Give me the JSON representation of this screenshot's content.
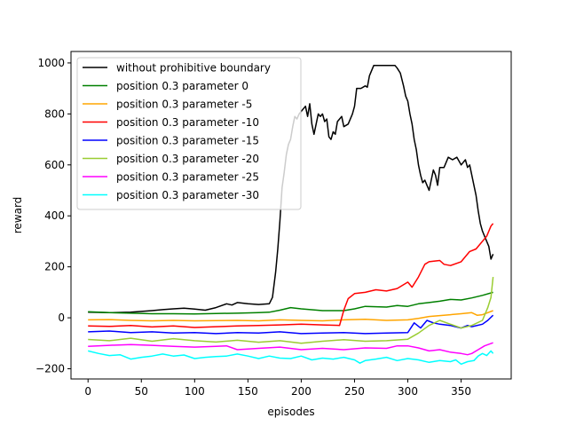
{
  "chart_data": {
    "type": "line",
    "title": "",
    "xlabel": "episodes",
    "ylabel": "reward",
    "xlim": [
      -16,
      397
    ],
    "ylim": [
      -240,
      1045
    ],
    "xticks": [
      0,
      50,
      100,
      150,
      200,
      250,
      300,
      350
    ],
    "yticks": [
      -200,
      0,
      200,
      400,
      600,
      800,
      1000
    ],
    "legend_position": "top-left",
    "grid": false,
    "series": [
      {
        "name": "without prohibitive boundary",
        "color": "#000000",
        "points": [
          [
            0,
            22
          ],
          [
            20,
            20
          ],
          [
            40,
            22
          ],
          [
            60,
            28
          ],
          [
            70,
            32
          ],
          [
            80,
            35
          ],
          [
            90,
            38
          ],
          [
            100,
            34
          ],
          [
            110,
            30
          ],
          [
            120,
            40
          ],
          [
            130,
            55
          ],
          [
            135,
            50
          ],
          [
            140,
            60
          ],
          [
            150,
            55
          ],
          [
            160,
            52
          ],
          [
            170,
            55
          ],
          [
            173,
            80
          ],
          [
            176,
            180
          ],
          [
            178,
            270
          ],
          [
            180,
            380
          ],
          [
            182,
            510
          ],
          [
            184,
            570
          ],
          [
            186,
            640
          ],
          [
            188,
            680
          ],
          [
            190,
            700
          ],
          [
            192,
            750
          ],
          [
            194,
            790
          ],
          [
            196,
            780
          ],
          [
            198,
            800
          ],
          [
            200,
            810
          ],
          [
            204,
            830
          ],
          [
            206,
            790
          ],
          [
            208,
            840
          ],
          [
            210,
            760
          ],
          [
            212,
            720
          ],
          [
            214,
            760
          ],
          [
            216,
            800
          ],
          [
            218,
            790
          ],
          [
            220,
            800
          ],
          [
            222,
            770
          ],
          [
            224,
            780
          ],
          [
            226,
            710
          ],
          [
            228,
            700
          ],
          [
            230,
            730
          ],
          [
            232,
            720
          ],
          [
            234,
            770
          ],
          [
            236,
            780
          ],
          [
            238,
            790
          ],
          [
            240,
            750
          ],
          [
            244,
            760
          ],
          [
            248,
            800
          ],
          [
            250,
            830
          ],
          [
            252,
            900
          ],
          [
            256,
            900
          ],
          [
            260,
            910
          ],
          [
            262,
            905
          ],
          [
            264,
            950
          ],
          [
            268,
            990
          ],
          [
            272,
            990
          ],
          [
            276,
            990
          ],
          [
            280,
            990
          ],
          [
            284,
            990
          ],
          [
            288,
            990
          ],
          [
            290,
            980
          ],
          [
            293,
            960
          ],
          [
            296,
            910
          ],
          [
            298,
            870
          ],
          [
            300,
            850
          ],
          [
            302,
            800
          ],
          [
            304,
            760
          ],
          [
            306,
            700
          ],
          [
            308,
            660
          ],
          [
            310,
            600
          ],
          [
            312,
            560
          ],
          [
            314,
            530
          ],
          [
            316,
            540
          ],
          [
            318,
            520
          ],
          [
            320,
            500
          ],
          [
            322,
            540
          ],
          [
            324,
            580
          ],
          [
            326,
            560
          ],
          [
            328,
            520
          ],
          [
            330,
            590
          ],
          [
            334,
            590
          ],
          [
            338,
            630
          ],
          [
            342,
            620
          ],
          [
            346,
            630
          ],
          [
            350,
            600
          ],
          [
            354,
            620
          ],
          [
            356,
            590
          ],
          [
            358,
            600
          ],
          [
            360,
            560
          ],
          [
            362,
            520
          ],
          [
            364,
            480
          ],
          [
            366,
            420
          ],
          [
            368,
            370
          ],
          [
            370,
            340
          ],
          [
            372,
            320
          ],
          [
            374,
            300
          ],
          [
            376,
            280
          ],
          [
            378,
            230
          ],
          [
            380,
            250
          ]
        ]
      },
      {
        "name": "position 0.3 parameter 0",
        "color": "#008000",
        "points": [
          [
            0,
            24
          ],
          [
            20,
            20
          ],
          [
            40,
            18
          ],
          [
            60,
            16
          ],
          [
            80,
            16
          ],
          [
            100,
            15
          ],
          [
            120,
            17
          ],
          [
            140,
            18
          ],
          [
            160,
            20
          ],
          [
            170,
            22
          ],
          [
            180,
            30
          ],
          [
            190,
            40
          ],
          [
            200,
            35
          ],
          [
            220,
            28
          ],
          [
            240,
            28
          ],
          [
            250,
            35
          ],
          [
            260,
            45
          ],
          [
            280,
            42
          ],
          [
            290,
            48
          ],
          [
            300,
            45
          ],
          [
            310,
            55
          ],
          [
            320,
            60
          ],
          [
            330,
            65
          ],
          [
            340,
            72
          ],
          [
            350,
            70
          ],
          [
            360,
            78
          ],
          [
            370,
            88
          ],
          [
            380,
            100
          ]
        ]
      },
      {
        "name": "position 0.3 parameter -5",
        "color": "#ffa500",
        "points": [
          [
            0,
            -8
          ],
          [
            20,
            -7
          ],
          [
            40,
            -10
          ],
          [
            60,
            -12
          ],
          [
            80,
            -10
          ],
          [
            100,
            -12
          ],
          [
            120,
            -11
          ],
          [
            140,
            -10
          ],
          [
            160,
            -12
          ],
          [
            180,
            -8
          ],
          [
            200,
            -10
          ],
          [
            220,
            -12
          ],
          [
            240,
            -8
          ],
          [
            260,
            -6
          ],
          [
            280,
            -10
          ],
          [
            300,
            -8
          ],
          [
            310,
            -2
          ],
          [
            320,
            5
          ],
          [
            340,
            12
          ],
          [
            350,
            16
          ],
          [
            360,
            20
          ],
          [
            365,
            10
          ],
          [
            370,
            12
          ],
          [
            375,
            20
          ],
          [
            380,
            28
          ]
        ]
      },
      {
        "name": "position 0.3 parameter -10",
        "color": "#ff0000",
        "points": [
          [
            0,
            -32
          ],
          [
            20,
            -34
          ],
          [
            40,
            -30
          ],
          [
            60,
            -36
          ],
          [
            80,
            -32
          ],
          [
            100,
            -38
          ],
          [
            120,
            -35
          ],
          [
            140,
            -32
          ],
          [
            160,
            -30
          ],
          [
            180,
            -28
          ],
          [
            200,
            -25
          ],
          [
            220,
            -28
          ],
          [
            236,
            -30
          ],
          [
            240,
            30
          ],
          [
            244,
            75
          ],
          [
            250,
            95
          ],
          [
            260,
            100
          ],
          [
            270,
            110
          ],
          [
            280,
            105
          ],
          [
            290,
            115
          ],
          [
            300,
            140
          ],
          [
            304,
            120
          ],
          [
            310,
            160
          ],
          [
            316,
            210
          ],
          [
            320,
            220
          ],
          [
            330,
            225
          ],
          [
            334,
            210
          ],
          [
            340,
            205
          ],
          [
            350,
            220
          ],
          [
            358,
            260
          ],
          [
            364,
            270
          ],
          [
            370,
            300
          ],
          [
            374,
            320
          ],
          [
            378,
            360
          ],
          [
            380,
            370
          ]
        ]
      },
      {
        "name": "position 0.3 parameter -15",
        "color": "#0000ff",
        "points": [
          [
            0,
            -55
          ],
          [
            20,
            -52
          ],
          [
            40,
            -58
          ],
          [
            60,
            -55
          ],
          [
            80,
            -60
          ],
          [
            100,
            -58
          ],
          [
            120,
            -62
          ],
          [
            140,
            -58
          ],
          [
            160,
            -60
          ],
          [
            180,
            -55
          ],
          [
            200,
            -62
          ],
          [
            220,
            -60
          ],
          [
            240,
            -58
          ],
          [
            260,
            -62
          ],
          [
            280,
            -60
          ],
          [
            300,
            -58
          ],
          [
            306,
            -20
          ],
          [
            312,
            -40
          ],
          [
            318,
            -10
          ],
          [
            324,
            -20
          ],
          [
            330,
            -25
          ],
          [
            340,
            -30
          ],
          [
            350,
            -40
          ],
          [
            356,
            -30
          ],
          [
            360,
            -35
          ],
          [
            370,
            -25
          ],
          [
            375,
            -10
          ],
          [
            380,
            10
          ]
        ]
      },
      {
        "name": "position 0.3 parameter -20",
        "color": "#9acd32",
        "points": [
          [
            0,
            -85
          ],
          [
            20,
            -90
          ],
          [
            40,
            -80
          ],
          [
            60,
            -92
          ],
          [
            80,
            -82
          ],
          [
            100,
            -90
          ],
          [
            120,
            -95
          ],
          [
            140,
            -88
          ],
          [
            160,
            -96
          ],
          [
            180,
            -90
          ],
          [
            200,
            -100
          ],
          [
            220,
            -92
          ],
          [
            240,
            -86
          ],
          [
            260,
            -92
          ],
          [
            280,
            -90
          ],
          [
            300,
            -84
          ],
          [
            310,
            -60
          ],
          [
            320,
            -30
          ],
          [
            330,
            -10
          ],
          [
            340,
            -25
          ],
          [
            350,
            -40
          ],
          [
            360,
            -30
          ],
          [
            370,
            -10
          ],
          [
            375,
            40
          ],
          [
            378,
            80
          ],
          [
            380,
            160
          ]
        ]
      },
      {
        "name": "position 0.3 parameter -25",
        "color": "#ff00ff",
        "points": [
          [
            0,
            -112
          ],
          [
            20,
            -108
          ],
          [
            40,
            -105
          ],
          [
            60,
            -108
          ],
          [
            80,
            -112
          ],
          [
            100,
            -115
          ],
          [
            120,
            -112
          ],
          [
            130,
            -110
          ],
          [
            140,
            -125
          ],
          [
            160,
            -120
          ],
          [
            180,
            -115
          ],
          [
            200,
            -125
          ],
          [
            220,
            -120
          ],
          [
            240,
            -125
          ],
          [
            260,
            -118
          ],
          [
            280,
            -120
          ],
          [
            290,
            -110
          ],
          [
            300,
            -110
          ],
          [
            310,
            -118
          ],
          [
            320,
            -130
          ],
          [
            330,
            -125
          ],
          [
            340,
            -135
          ],
          [
            350,
            -140
          ],
          [
            356,
            -145
          ],
          [
            360,
            -140
          ],
          [
            366,
            -125
          ],
          [
            372,
            -110
          ],
          [
            380,
            -98
          ]
        ]
      },
      {
        "name": "position 0.3 parameter -30",
        "color": "#00ffff",
        "points": [
          [
            0,
            -130
          ],
          [
            10,
            -140
          ],
          [
            20,
            -148
          ],
          [
            30,
            -145
          ],
          [
            40,
            -162
          ],
          [
            50,
            -155
          ],
          [
            60,
            -150
          ],
          [
            70,
            -142
          ],
          [
            80,
            -150
          ],
          [
            90,
            -146
          ],
          [
            100,
            -160
          ],
          [
            110,
            -155
          ],
          [
            120,
            -152
          ],
          [
            130,
            -150
          ],
          [
            140,
            -142
          ],
          [
            150,
            -150
          ],
          [
            160,
            -160
          ],
          [
            170,
            -150
          ],
          [
            180,
            -158
          ],
          [
            190,
            -160
          ],
          [
            200,
            -150
          ],
          [
            210,
            -165
          ],
          [
            220,
            -158
          ],
          [
            230,
            -162
          ],
          [
            240,
            -155
          ],
          [
            250,
            -165
          ],
          [
            255,
            -178
          ],
          [
            260,
            -168
          ],
          [
            270,
            -162
          ],
          [
            280,
            -155
          ],
          [
            290,
            -168
          ],
          [
            300,
            -160
          ],
          [
            310,
            -165
          ],
          [
            320,
            -175
          ],
          [
            330,
            -168
          ],
          [
            340,
            -172
          ],
          [
            345,
            -165
          ],
          [
            350,
            -182
          ],
          [
            356,
            -172
          ],
          [
            362,
            -168
          ],
          [
            366,
            -150
          ],
          [
            370,
            -140
          ],
          [
            374,
            -148
          ],
          [
            378,
            -130
          ],
          [
            380,
            -140
          ]
        ]
      }
    ]
  }
}
